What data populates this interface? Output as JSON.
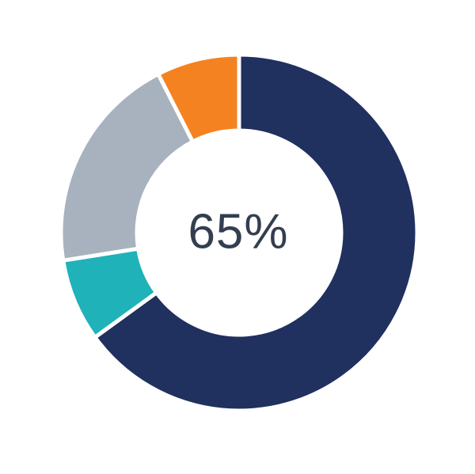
{
  "chart_data": {
    "type": "pie",
    "donut": true,
    "title": "",
    "center_label": "65%",
    "direction": "clockwise",
    "start_angle_deg": 0,
    "legend": "none",
    "separator_color": "#FFFFFF",
    "text_color": "#333E50",
    "segments": [
      {
        "name": "navy-segment",
        "value": 65,
        "color": "#20305F"
      },
      {
        "name": "teal-segment",
        "value": 7.5,
        "color": "#1FB2B9"
      },
      {
        "name": "gray-segment",
        "value": 20,
        "color": "#A8B2BF"
      },
      {
        "name": "orange-segment",
        "value": 7.5,
        "color": "#F58220"
      }
    ]
  }
}
